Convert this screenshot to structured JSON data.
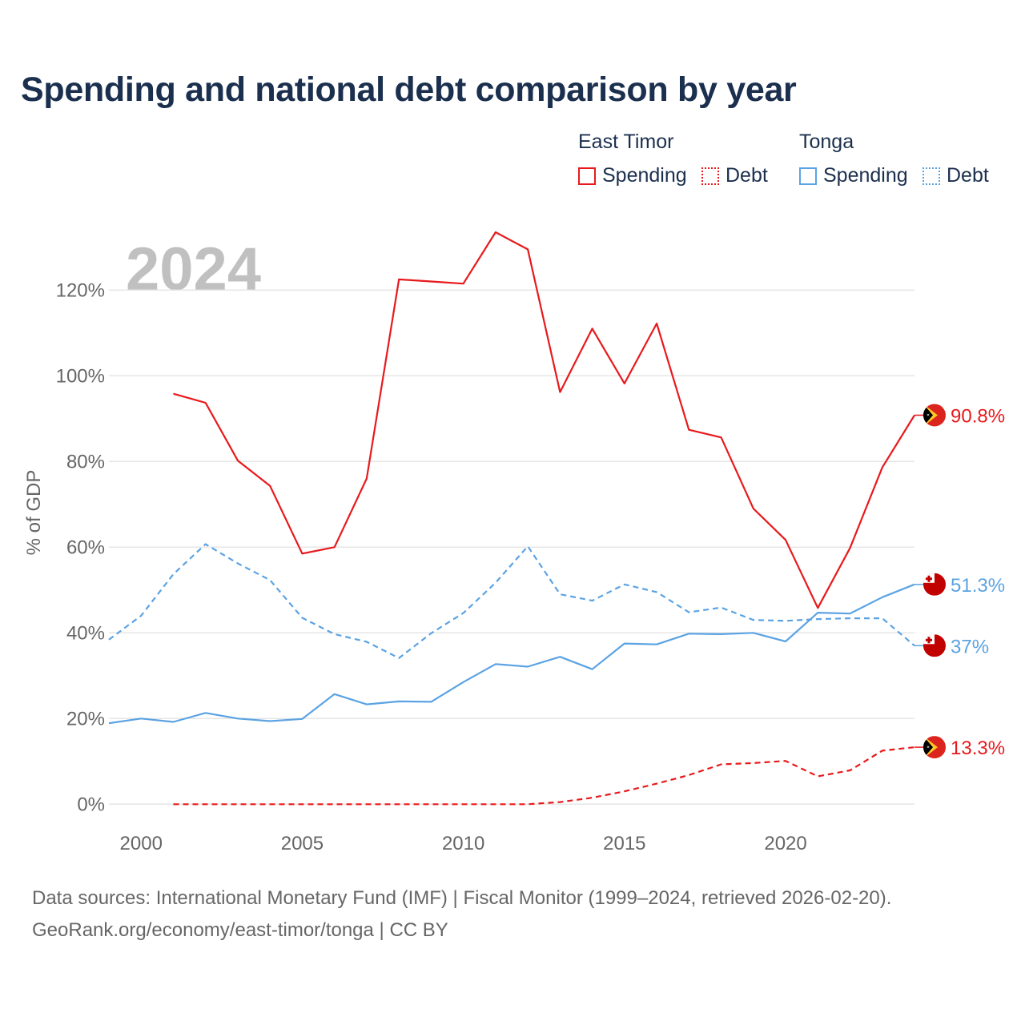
{
  "title": "Spending and national debt comparison by year",
  "legend": {
    "groups": [
      {
        "name": "East Timor",
        "items": [
          {
            "label": "Spending",
            "style": "solid",
            "color": "#e8191c"
          },
          {
            "label": "Debt",
            "style": "dotted",
            "color": "#e8191c"
          }
        ]
      },
      {
        "name": "Tonga",
        "items": [
          {
            "label": "Spending",
            "style": "solid",
            "color": "#5ba3e3"
          },
          {
            "label": "Debt",
            "style": "dotted",
            "color": "#5ba3e3"
          }
        ]
      }
    ]
  },
  "year_watermark": "2024",
  "source": {
    "line1": "Data sources: International Monetary Fund (IMF) | Fiscal Monitor (1999–2024, retrieved 2026-02-20).",
    "line2": "GeoRank.org/economy/east-timor/tonga | CC BY"
  },
  "colors": {
    "east_timor": "#e8191c",
    "tonga": "#5ba3e3",
    "grid": "#e6e6e6",
    "axis_text": "#666666",
    "watermark": "#c0c0c0"
  },
  "chart_data": {
    "type": "line",
    "ylabel": "% of GDP",
    "xlim": [
      1999,
      2024
    ],
    "ylim": [
      -5,
      135
    ],
    "x_ticks": [
      2000,
      2005,
      2010,
      2015,
      2020
    ],
    "y_ticks": [
      0,
      20,
      40,
      60,
      80,
      100,
      120
    ],
    "y_tick_labels": [
      "0%",
      "20%",
      "40%",
      "60%",
      "80%",
      "100%",
      "120%"
    ],
    "grid": true,
    "series": [
      {
        "name": "East Timor Spending",
        "country": "east_timor",
        "dash": "solid",
        "end_label": "90.8%",
        "x": [
          2001,
          2002,
          2003,
          2004,
          2005,
          2006,
          2007,
          2008,
          2009,
          2010,
          2011,
          2012,
          2013,
          2014,
          2015,
          2016,
          2017,
          2018,
          2019,
          2020,
          2021,
          2022,
          2023,
          2024
        ],
        "values": [
          95.8,
          93.7,
          80.2,
          74.3,
          58.5,
          60.0,
          76.0,
          122.5,
          122.0,
          121.5,
          133.5,
          129.5,
          96.2,
          111.0,
          98.2,
          112.2,
          87.4,
          85.6,
          69.0,
          61.7,
          45.8,
          59.8,
          78.6,
          90.8
        ]
      },
      {
        "name": "East Timor Debt",
        "country": "east_timor",
        "dash": "dashed",
        "end_label": "13.3%",
        "x": [
          2001,
          2002,
          2003,
          2004,
          2005,
          2006,
          2007,
          2008,
          2009,
          2010,
          2011,
          2012,
          2013,
          2014,
          2015,
          2016,
          2017,
          2018,
          2019,
          2020,
          2021,
          2022,
          2023,
          2024
        ],
        "values": [
          0,
          0,
          0,
          0,
          0,
          0,
          0,
          0,
          0,
          0,
          0,
          0,
          0.5,
          1.5,
          3.0,
          4.8,
          6.8,
          9.3,
          9.6,
          10.1,
          6.5,
          7.9,
          12.5,
          13.3
        ]
      },
      {
        "name": "Tonga Spending",
        "country": "tonga",
        "dash": "solid",
        "end_label": "51.3%",
        "x": [
          1999,
          2000,
          2001,
          2002,
          2003,
          2004,
          2005,
          2006,
          2007,
          2008,
          2009,
          2010,
          2011,
          2012,
          2013,
          2014,
          2015,
          2016,
          2017,
          2018,
          2019,
          2020,
          2021,
          2022,
          2023,
          2024
        ],
        "values": [
          18.9,
          20.0,
          19.2,
          21.3,
          20.0,
          19.4,
          19.9,
          25.7,
          23.3,
          24.0,
          23.9,
          28.5,
          32.7,
          32.1,
          34.4,
          31.5,
          37.5,
          37.3,
          39.8,
          39.7,
          40.0,
          38.0,
          44.7,
          44.5,
          48.3,
          51.3
        ]
      },
      {
        "name": "Tonga Debt",
        "country": "tonga",
        "dash": "dashed",
        "end_label": "37%",
        "x": [
          1999,
          2000,
          2001,
          2002,
          2003,
          2004,
          2005,
          2006,
          2007,
          2008,
          2009,
          2010,
          2011,
          2012,
          2013,
          2014,
          2015,
          2016,
          2017,
          2018,
          2019,
          2020,
          2021,
          2022,
          2023,
          2024
        ],
        "values": [
          38.4,
          44.0,
          53.7,
          60.7,
          56.2,
          52.3,
          43.5,
          39.7,
          37.9,
          34.1,
          39.9,
          44.6,
          51.7,
          60.2,
          49.0,
          47.5,
          51.3,
          49.5,
          44.8,
          45.9,
          43.0,
          42.8,
          43.2,
          43.4,
          43.4,
          37.0
        ]
      }
    ]
  }
}
